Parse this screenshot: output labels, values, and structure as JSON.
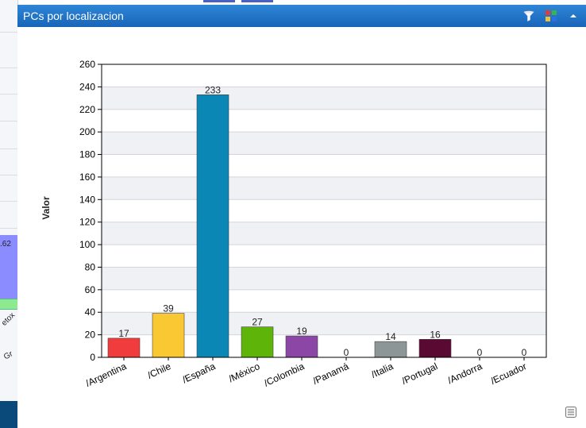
{
  "panel": {
    "title": "PCs por localizacion",
    "icons": [
      "filter-icon",
      "color-palette-icon",
      "collapse-arrow-icon"
    ],
    "footer_icon": "list-icon",
    "header_color": "#1f74c6"
  },
  "background": {
    "left_fragments": [
      ".62",
      "etox",
      "Gr"
    ]
  },
  "chart_data": {
    "type": "bar",
    "title": "",
    "xlabel": "",
    "ylabel": "Valor",
    "ylim": [
      0,
      260
    ],
    "ytick_step": 20,
    "grid": true,
    "categories": [
      "/Argentina",
      "/Chile",
      "/España",
      "/México",
      "/Colombia",
      "/Panamá",
      "/Italia",
      "/Portugal",
      "/Andorra",
      "/Ecuador"
    ],
    "values": [
      17,
      39,
      233,
      27,
      19,
      0,
      14,
      16,
      0,
      0
    ],
    "colors": [
      "#f03c3c",
      "#fac832",
      "#0a87b4",
      "#5fb40a",
      "#8c46a5",
      "#cccccc",
      "#8c9696",
      "#5a0a32",
      "#cccccc",
      "#cccccc"
    ]
  }
}
